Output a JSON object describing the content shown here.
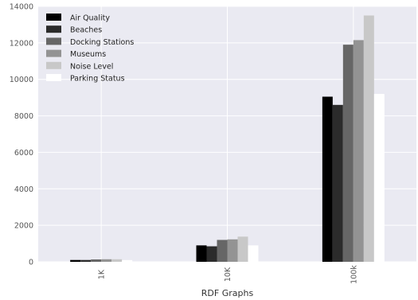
{
  "chart_data": {
    "type": "bar",
    "title": "",
    "xlabel": "RDF Graphs",
    "ylabel": "",
    "categories": [
      "1K",
      "10K",
      "100k"
    ],
    "ylim": [
      0,
      14000
    ],
    "yticks": [
      0,
      2000,
      4000,
      6000,
      8000,
      10000,
      12000,
      14000
    ],
    "grid": true,
    "legend_position": "top-left",
    "series": [
      {
        "name": "Air Quality",
        "color": "#000000",
        "values": [
          100,
          900,
          9050
        ]
      },
      {
        "name": "Beaches",
        "color": "#2b2b2b",
        "values": [
          100,
          850,
          8600
        ]
      },
      {
        "name": "Docking Stations",
        "color": "#666666",
        "values": [
          130,
          1200,
          11900
        ]
      },
      {
        "name": "Museums",
        "color": "#939393",
        "values": [
          140,
          1230,
          12150
        ]
      },
      {
        "name": "Noise Level",
        "color": "#c8c8c8",
        "values": [
          140,
          1380,
          13500
        ]
      },
      {
        "name": "Parking Status",
        "color": "#ffffff",
        "values": [
          95,
          900,
          9200
        ]
      }
    ],
    "background_color": "#eaeaf2",
    "grid_color": "#ffffff"
  }
}
